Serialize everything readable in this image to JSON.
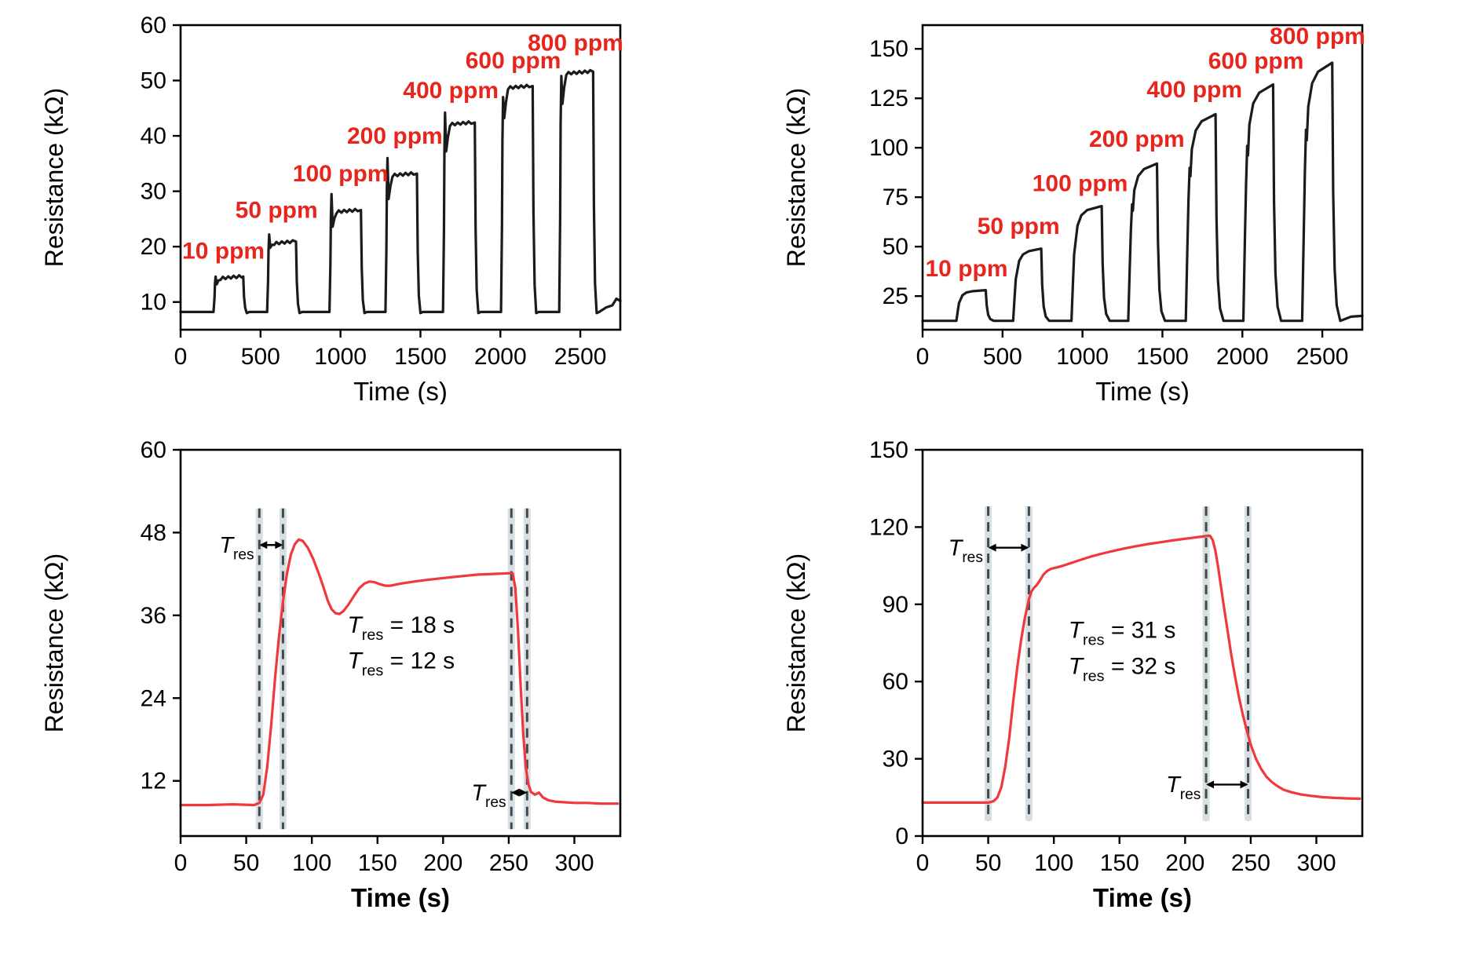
{
  "figure": {
    "background": "#ffffff"
  },
  "colors": {
    "curve_black": "#1b1b1b",
    "curve_red": "#f0383e",
    "label_red": "#e8251d",
    "dash_line": "#3c4b52",
    "dash_band": "#d9dee1",
    "axis": "#000000"
  },
  "chart_data": [
    {
      "name": "dynamic-response-left",
      "type": "line",
      "xlabel": "Time (s)",
      "ylabel": "Resistance (kΩ)",
      "xlim": [
        0,
        2750
      ],
      "ylim": [
        5,
        60
      ],
      "xticks": [
        0,
        500,
        1000,
        1500,
        2000,
        2500
      ],
      "yticks": [
        10,
        20,
        30,
        40,
        50,
        60
      ],
      "grid": false,
      "color": "#1b1b1b",
      "pulse_style": "spiky",
      "baseline": 8.2,
      "pulses": [
        {
          "label": "10 ppm",
          "on": 210,
          "off": 392,
          "spike": 14.6,
          "dip": 13.2,
          "plateau": 14.2,
          "label_x": 268,
          "label_y": 17.8
        },
        {
          "label": "50 ppm",
          "on": 545,
          "off": 722,
          "spike": 22.2,
          "dip": 19.8,
          "plateau": 20.5,
          "label_x": 600,
          "label_y": 25.2
        },
        {
          "label": "100 ppm",
          "on": 935,
          "off": 1128,
          "spike": 29.5,
          "dip": 23.6,
          "plateau": 26.2,
          "label_x": 1000,
          "label_y": 31.8
        },
        {
          "label": "200 ppm",
          "on": 1285,
          "off": 1478,
          "spike": 36.0,
          "dip": 28.6,
          "plateau": 32.8,
          "label_x": 1340,
          "label_y": 38.6
        },
        {
          "label": "400 ppm",
          "on": 1645,
          "off": 1840,
          "spike": 44.2,
          "dip": 37.2,
          "plateau": 42.0,
          "label_x": 1690,
          "label_y": 46.8
        },
        {
          "label": "600 ppm",
          "on": 2008,
          "off": 2202,
          "spike": 47.0,
          "dip": 43.2,
          "plateau": 48.6,
          "label_x": 2080,
          "label_y": 52.2
        },
        {
          "label": "800 ppm",
          "on": 2372,
          "off": 2580,
          "spike": 50.8,
          "dip": 45.8,
          "plateau": 51.2,
          "label_x": 2470,
          "label_y": 55.4
        }
      ],
      "tail": [
        [
          2660,
          9.0
        ],
        [
          2700,
          9.4
        ],
        [
          2726,
          10.6
        ],
        [
          2750,
          10.2
        ]
      ],
      "xlabel_serif": true,
      "xlabel_bold": false
    },
    {
      "name": "dynamic-response-right",
      "type": "line",
      "xlabel": "Time (s)",
      "ylabel": "Resistance (kΩ)",
      "xlim": [
        0,
        2750
      ],
      "ylim": [
        8,
        162
      ],
      "xticks": [
        0,
        500,
        1000,
        1500,
        2000,
        2500
      ],
      "yticks": [
        25,
        50,
        75,
        100,
        125,
        150
      ],
      "grid": false,
      "color": "#1b1b1b",
      "pulse_style": "smooth",
      "baseline": 12.5,
      "pulses": [
        {
          "label": "10 ppm",
          "on": 215,
          "off": 395,
          "peak": 28,
          "label_x": 275,
          "label_y": 35
        },
        {
          "label": "50 ppm",
          "on": 570,
          "off": 742,
          "peak": 49,
          "label_x": 600,
          "label_y": 56.5
        },
        {
          "label": "100 ppm",
          "on": 935,
          "off": 1120,
          "peak": 70.5,
          "label_x": 985,
          "label_y": 78
        },
        {
          "label": "200 ppm",
          "on": 1290,
          "off": 1466,
          "peak": 92,
          "notch": true,
          "label_x": 1340,
          "label_y": 100.5
        },
        {
          "label": "400 ppm",
          "on": 1650,
          "off": 1832,
          "peak": 117,
          "notch": true,
          "label_x": 1700,
          "label_y": 125.5
        },
        {
          "label": "600 ppm",
          "on": 2010,
          "off": 2192,
          "peak": 132,
          "notch": true,
          "label_x": 2085,
          "label_y": 140
        },
        {
          "label": "800 ppm",
          "on": 2378,
          "off": 2562,
          "peak": 143,
          "notch": true,
          "label_x": 2470,
          "label_y": 152.5
        }
      ],
      "tail": [
        [
          2680,
          14.6
        ],
        [
          2750,
          15.0
        ]
      ],
      "xlabel_serif": true,
      "xlabel_bold": false
    },
    {
      "name": "response-recovery-left",
      "type": "line",
      "xlabel": "Time (s)",
      "ylabel": "Resistance (kΩ)",
      "xlim": [
        0,
        335
      ],
      "ylim": [
        4,
        60
      ],
      "xticks": [
        0,
        50,
        100,
        150,
        200,
        250,
        300
      ],
      "yticks": [
        12,
        24,
        36,
        48,
        60
      ],
      "grid": false,
      "color": "#f0383e",
      "points": [
        [
          0,
          8.5
        ],
        [
          20,
          8.5
        ],
        [
          40,
          8.6
        ],
        [
          56,
          8.5
        ],
        [
          60,
          8.8
        ],
        [
          63,
          10
        ],
        [
          66,
          14
        ],
        [
          69,
          20
        ],
        [
          72,
          27
        ],
        [
          75,
          33
        ],
        [
          78,
          38
        ],
        [
          81,
          42
        ],
        [
          84,
          44.8
        ],
        [
          87,
          46.3
        ],
        [
          90,
          47
        ],
        [
          93,
          46.8
        ],
        [
          97,
          45.8
        ],
        [
          101,
          44.2
        ],
        [
          105,
          42.2
        ],
        [
          109,
          40
        ],
        [
          112,
          38.2
        ],
        [
          115,
          36.9
        ],
        [
          118,
          36.3
        ],
        [
          121,
          36.2
        ],
        [
          124,
          36.6
        ],
        [
          128,
          37.6
        ],
        [
          132,
          38.8
        ],
        [
          136,
          39.9
        ],
        [
          140,
          40.6
        ],
        [
          144,
          40.9
        ],
        [
          148,
          40.8
        ],
        [
          152,
          40.5
        ],
        [
          156,
          40.3
        ],
        [
          160,
          40.3
        ],
        [
          165,
          40.5
        ],
        [
          171,
          40.7
        ],
        [
          178,
          40.9
        ],
        [
          186,
          41.1
        ],
        [
          195,
          41.3
        ],
        [
          205,
          41.5
        ],
        [
          215,
          41.7
        ],
        [
          226,
          41.9
        ],
        [
          238,
          42
        ],
        [
          250,
          42.1
        ],
        [
          253,
          42.1
        ],
        [
          255,
          40
        ],
        [
          257,
          34
        ],
        [
          259,
          26
        ],
        [
          261,
          19
        ],
        [
          263,
          14
        ],
        [
          265,
          11.5
        ],
        [
          267,
          10.4
        ],
        [
          270,
          10
        ],
        [
          273,
          10.3
        ],
        [
          276,
          9.6
        ],
        [
          280,
          9.2
        ],
        [
          285,
          9.0
        ],
        [
          292,
          8.9
        ],
        [
          300,
          8.8
        ],
        [
          310,
          8.8
        ],
        [
          320,
          8.7
        ],
        [
          333,
          8.7
        ]
      ],
      "vlines": {
        "x": [
          60,
          78,
          252,
          264
        ],
        "y1": 5,
        "y2": 51.5
      },
      "arrows": [
        {
          "x1": 60,
          "x2": 78,
          "y": 46.2,
          "label": [
            {
              "t": "T",
              "i": true
            },
            {
              "t": "res",
              "sub": true
            }
          ],
          "label_x": 56,
          "label_y": 45.1
        },
        {
          "x1": 252,
          "x2": 264,
          "y": 10.3,
          "label": [
            {
              "t": "T",
              "i": true
            },
            {
              "t": "res",
              "sub": true
            }
          ],
          "label_x": 248,
          "label_y": 9.2
        }
      ],
      "texts": [
        {
          "x": 168,
          "y": 33.5,
          "size": 30,
          "parts": [
            {
              "t": "T",
              "i": true
            },
            {
              "t": "res",
              "sub": true
            },
            {
              "t": " = 18 s"
            }
          ]
        },
        {
          "x": 168,
          "y": 28.3,
          "size": 30,
          "parts": [
            {
              "t": "T",
              "i": true
            },
            {
              "t": "res",
              "sub": true
            },
            {
              "t": " = 12 s"
            }
          ]
        }
      ],
      "xlabel_serif": false,
      "xlabel_bold": true
    },
    {
      "name": "response-recovery-right",
      "type": "line",
      "xlabel": "Time (s)",
      "ylabel": "Resistance (kΩ)",
      "xlim": [
        0,
        335
      ],
      "ylim": [
        0,
        150
      ],
      "xticks": [
        0,
        50,
        100,
        150,
        200,
        250,
        300
      ],
      "yticks": [
        0,
        30,
        60,
        90,
        120,
        150
      ],
      "grid": false,
      "color": "#f0383e",
      "points": [
        [
          0,
          13
        ],
        [
          20,
          13
        ],
        [
          40,
          13
        ],
        [
          50,
          13
        ],
        [
          54,
          13.5
        ],
        [
          57,
          15
        ],
        [
          60,
          19
        ],
        [
          63,
          27
        ],
        [
          66,
          38
        ],
        [
          69,
          52
        ],
        [
          72,
          65
        ],
        [
          75,
          76
        ],
        [
          78,
          85
        ],
        [
          81,
          92
        ],
        [
          83,
          95
        ],
        [
          85,
          96.5
        ],
        [
          87,
          97.5
        ],
        [
          89,
          99
        ],
        [
          92,
          101.5
        ],
        [
          95,
          103
        ],
        [
          98,
          103.8
        ],
        [
          102,
          104.3
        ],
        [
          107,
          105
        ],
        [
          113,
          106
        ],
        [
          120,
          107.2
        ],
        [
          128,
          108.5
        ],
        [
          136,
          109.6
        ],
        [
          145,
          110.7
        ],
        [
          154,
          111.7
        ],
        [
          163,
          112.6
        ],
        [
          172,
          113.4
        ],
        [
          181,
          114.1
        ],
        [
          190,
          114.8
        ],
        [
          199,
          115.4
        ],
        [
          207,
          115.9
        ],
        [
          213,
          116.3
        ],
        [
          217,
          116.6
        ],
        [
          219,
          116.6
        ],
        [
          221,
          115
        ],
        [
          223,
          111
        ],
        [
          225,
          105
        ],
        [
          227,
          98
        ],
        [
          229,
          91
        ],
        [
          232,
          81
        ],
        [
          235,
          71
        ],
        [
          238,
          62
        ],
        [
          241,
          54
        ],
        [
          244,
          47
        ],
        [
          247,
          41
        ],
        [
          250,
          35.5
        ],
        [
          254,
          30
        ],
        [
          258,
          26
        ],
        [
          262,
          23
        ],
        [
          266,
          21
        ],
        [
          270,
          19.5
        ],
        [
          275,
          18
        ],
        [
          281,
          17
        ],
        [
          288,
          16.2
        ],
        [
          296,
          15.6
        ],
        [
          305,
          15.1
        ],
        [
          315,
          14.8
        ],
        [
          325,
          14.6
        ],
        [
          333,
          14.5
        ]
      ],
      "vlines": {
        "x": [
          50,
          81,
          216,
          248
        ],
        "y1": 6,
        "y2": 128
      },
      "arrows": [
        {
          "x1": 50,
          "x2": 81,
          "y": 112,
          "label": [
            {
              "t": "T",
              "i": true
            },
            {
              "t": "res",
              "sub": true
            }
          ],
          "label_x": 46,
          "label_y": 109
        },
        {
          "x1": 216,
          "x2": 248,
          "y": 20,
          "label": [
            {
              "t": "T",
              "i": true
            },
            {
              "t": "res",
              "sub": true
            }
          ],
          "label_x": 212,
          "label_y": 17
        }
      ],
      "texts": [
        {
          "x": 152,
          "y": 77,
          "size": 30,
          "parts": [
            {
              "t": "T",
              "i": true
            },
            {
              "t": "res",
              "sub": true
            },
            {
              "t": " = 31 s"
            }
          ]
        },
        {
          "x": 152,
          "y": 63,
          "size": 30,
          "parts": [
            {
              "t": "T",
              "i": true
            },
            {
              "t": "res",
              "sub": true
            },
            {
              "t": " = 32 s"
            }
          ]
        }
      ],
      "xlabel_serif": false,
      "xlabel_bold": true
    }
  ]
}
